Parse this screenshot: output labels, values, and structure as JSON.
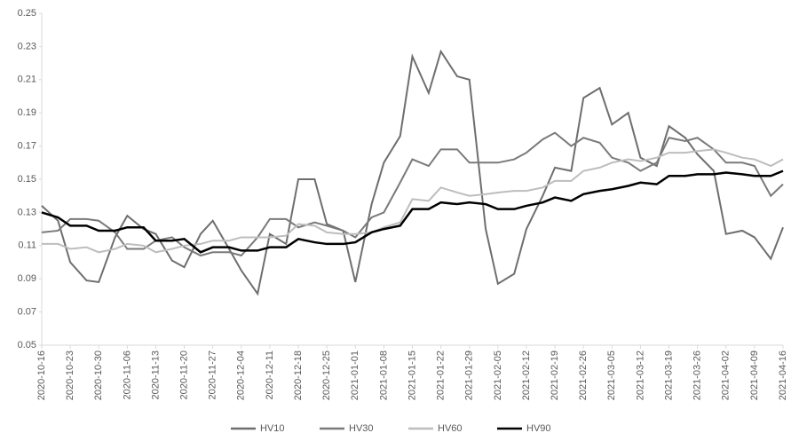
{
  "chart_data": {
    "type": "line",
    "x": [
      "2020-10-16",
      "2020-10-20",
      "2020-10-23",
      "2020-10-27",
      "2020-10-30",
      "2020-11-03",
      "2020-11-06",
      "2020-11-10",
      "2020-11-13",
      "2020-11-17",
      "2020-11-20",
      "2020-11-24",
      "2020-11-27",
      "2020-12-01",
      "2020-12-04",
      "2020-12-08",
      "2020-12-11",
      "2020-12-15",
      "2020-12-18",
      "2020-12-22",
      "2020-12-25",
      "2020-12-29",
      "2021-01-01",
      "2021-01-05",
      "2021-01-08",
      "2021-01-12",
      "2021-01-15",
      "2021-01-19",
      "2021-01-22",
      "2021-01-26",
      "2021-01-29",
      "2021-02-02",
      "2021-02-05",
      "2021-02-09",
      "2021-02-12",
      "2021-02-16",
      "2021-02-19",
      "2021-02-23",
      "2021-02-26",
      "2021-03-02",
      "2021-03-05",
      "2021-03-09",
      "2021-03-12",
      "2021-03-16",
      "2021-03-19",
      "2021-03-23",
      "2021-03-26",
      "2021-03-30",
      "2021-04-02",
      "2021-04-06",
      "2021-04-09",
      "2021-04-13",
      "2021-04-16"
    ],
    "series": [
      {
        "name": "HV10",
        "color": "#6e6e6e",
        "values": [
          0.134,
          0.125,
          0.1,
          0.089,
          0.088,
          0.115,
          0.128,
          0.12,
          0.117,
          0.101,
          0.097,
          0.117,
          0.125,
          0.108,
          0.095,
          0.081,
          0.117,
          0.111,
          0.15,
          0.15,
          0.123,
          0.119,
          0.088,
          0.135,
          0.16,
          0.176,
          0.224,
          0.202,
          0.227,
          0.212,
          0.21,
          0.12,
          0.087,
          0.093,
          0.12,
          0.14,
          0.157,
          0.155,
          0.199,
          0.205,
          0.183,
          0.19,
          0.163,
          0.158,
          0.182,
          0.175,
          0.165,
          0.155,
          0.117,
          0.119,
          0.115,
          0.102,
          0.121
        ]
      },
      {
        "name": "HV30",
        "color": "#7a7a7a",
        "values": [
          0.118,
          0.119,
          0.126,
          0.126,
          0.125,
          0.118,
          0.108,
          0.108,
          0.113,
          0.115,
          0.109,
          0.104,
          0.106,
          0.106,
          0.104,
          0.115,
          0.126,
          0.126,
          0.121,
          0.124,
          0.122,
          0.119,
          0.115,
          0.127,
          0.13,
          0.148,
          0.162,
          0.158,
          0.168,
          0.168,
          0.16,
          0.16,
          0.16,
          0.162,
          0.166,
          0.174,
          0.178,
          0.17,
          0.175,
          0.172,
          0.163,
          0.16,
          0.155,
          0.16,
          0.175,
          0.173,
          0.175,
          0.168,
          0.16,
          0.16,
          0.158,
          0.14,
          0.147
        ]
      },
      {
        "name": "HV60",
        "color": "#bdbdbd",
        "values": [
          0.111,
          0.111,
          0.108,
          0.109,
          0.106,
          0.108,
          0.111,
          0.11,
          0.106,
          0.108,
          0.11,
          0.111,
          0.113,
          0.113,
          0.115,
          0.115,
          0.115,
          0.116,
          0.123,
          0.122,
          0.118,
          0.117,
          0.117,
          0.118,
          0.121,
          0.124,
          0.138,
          0.137,
          0.145,
          0.142,
          0.14,
          0.141,
          0.142,
          0.143,
          0.143,
          0.145,
          0.149,
          0.149,
          0.155,
          0.157,
          0.16,
          0.162,
          0.161,
          0.163,
          0.166,
          0.166,
          0.167,
          0.168,
          0.166,
          0.163,
          0.162,
          0.158,
          0.162
        ]
      },
      {
        "name": "HV90",
        "color": "#000000",
        "values": [
          0.13,
          0.127,
          0.122,
          0.122,
          0.119,
          0.119,
          0.121,
          0.121,
          0.113,
          0.113,
          0.114,
          0.106,
          0.109,
          0.109,
          0.107,
          0.107,
          0.109,
          0.109,
          0.114,
          0.112,
          0.111,
          0.111,
          0.112,
          0.118,
          0.12,
          0.122,
          0.132,
          0.132,
          0.136,
          0.135,
          0.136,
          0.135,
          0.132,
          0.132,
          0.134,
          0.136,
          0.139,
          0.137,
          0.141,
          0.143,
          0.144,
          0.146,
          0.148,
          0.147,
          0.152,
          0.152,
          0.153,
          0.153,
          0.154,
          0.153,
          0.152,
          0.152,
          0.155
        ]
      }
    ],
    "xlim": [
      "2020-10-16",
      "2021-04-16"
    ],
    "xticks": [
      "2020-10-16",
      "2020-10-23",
      "2020-10-30",
      "2020-11-06",
      "2020-11-13",
      "2020-11-20",
      "2020-11-27",
      "2020-12-04",
      "2020-12-11",
      "2020-12-18",
      "2020-12-25",
      "2021-01-01",
      "2021-01-08",
      "2021-01-15",
      "2021-01-22",
      "2021-01-29",
      "2021-02-05",
      "2021-02-12",
      "2021-02-19",
      "2021-02-26",
      "2021-03-05",
      "2021-03-12",
      "2021-03-19",
      "2021-03-26",
      "2021-04-02",
      "2021-04-09",
      "2021-04-16"
    ],
    "ylim": [
      0.05,
      0.25
    ],
    "yticks": [
      0.05,
      0.07,
      0.09,
      0.11,
      0.13,
      0.15,
      0.17,
      0.19,
      0.21,
      0.23,
      0.25
    ],
    "grid": false,
    "legend": "bottom"
  }
}
